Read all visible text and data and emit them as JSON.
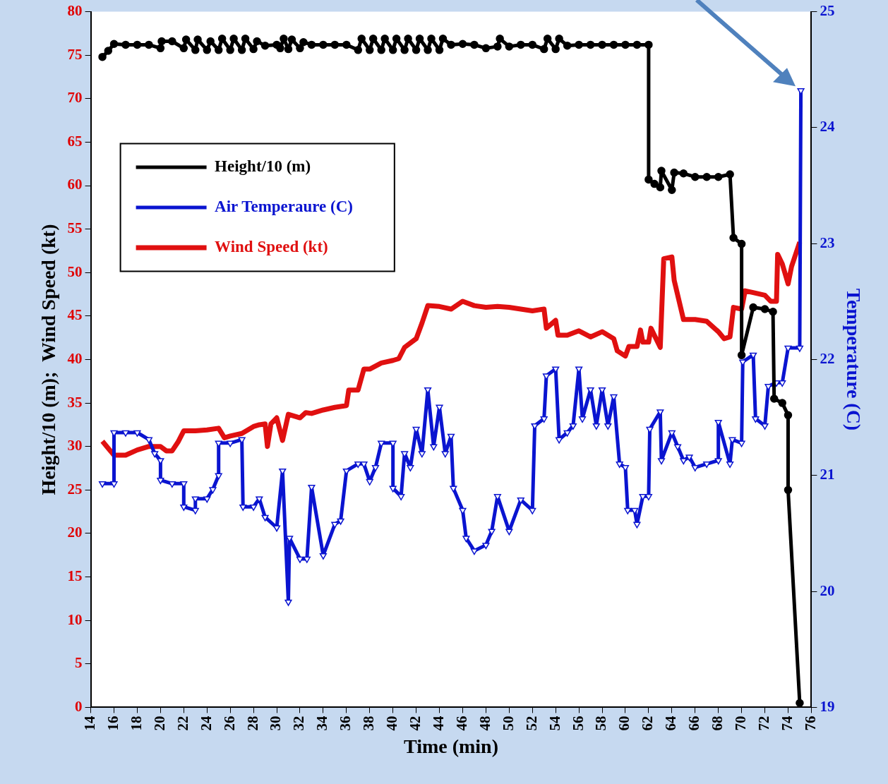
{
  "chart_data": {
    "type": "line",
    "xlabel": "Time (min)",
    "ylabel": "Height/10 (m);  Wind Speed (kt)",
    "y2label": "Temperature (C)",
    "xlim": [
      14,
      76
    ],
    "xticks": [
      14,
      16,
      18,
      20,
      22,
      24,
      26,
      28,
      30,
      32,
      34,
      36,
      38,
      40,
      42,
      44,
      46,
      48,
      50,
      52,
      54,
      56,
      58,
      60,
      62,
      64,
      66,
      68,
      70,
      72,
      74,
      76
    ],
    "ylim": [
      0,
      80
    ],
    "yticks": [
      0,
      5,
      10,
      15,
      20,
      25,
      30,
      35,
      40,
      45,
      50,
      55,
      60,
      65,
      70,
      75,
      80
    ],
    "y2lim": [
      19,
      25
    ],
    "y2ticks": [
      19,
      20,
      21,
      22,
      23,
      24,
      25
    ],
    "grid": false,
    "legend": "top left",
    "series": [
      {
        "name": "Height/10 (m)",
        "color": "#000000",
        "marker": "circle",
        "x": [
          15,
          15.5,
          16,
          17,
          18,
          19,
          20,
          20.1,
          21,
          22,
          22.2,
          23,
          23.2,
          24,
          24.3,
          25,
          25.3,
          26,
          26.3,
          27,
          27.3,
          28,
          28.3,
          29,
          30,
          30.3,
          30.6,
          31,
          31.3,
          32,
          32.3,
          33,
          34,
          35,
          36,
          37,
          37.3,
          38,
          38.3,
          39,
          39.3,
          40,
          40.3,
          41,
          41.3,
          42,
          42.3,
          43,
          43.3,
          44,
          44.3,
          45,
          46,
          47,
          48,
          49,
          49.2,
          50,
          51,
          52,
          53,
          53.3,
          54,
          54.3,
          55,
          56,
          57,
          58,
          59,
          60,
          61,
          62,
          62,
          62.5,
          63,
          63.1,
          64,
          64.2,
          65,
          66,
          67,
          68,
          69,
          69.3,
          70,
          70,
          71,
          72,
          72.7,
          72.8,
          73.5,
          74,
          74,
          75
        ],
        "values": [
          74.8,
          75.5,
          76.3,
          76.2,
          76.2,
          76.2,
          75.8,
          76.6,
          76.6,
          75.8,
          76.8,
          75.6,
          76.8,
          75.6,
          76.6,
          75.6,
          76.9,
          75.6,
          76.9,
          75.6,
          76.9,
          75.7,
          76.6,
          76.1,
          76.2,
          75.8,
          76.9,
          75.7,
          76.8,
          75.8,
          76.5,
          76.2,
          76.2,
          76.2,
          76.2,
          75.6,
          76.9,
          75.6,
          76.9,
          75.6,
          76.9,
          75.6,
          76.9,
          75.6,
          76.9,
          75.6,
          76.9,
          75.6,
          76.9,
          75.6,
          76.9,
          76.2,
          76.3,
          76.2,
          75.8,
          76,
          76.9,
          76,
          76.2,
          76.2,
          75.7,
          76.9,
          75.7,
          76.9,
          76.1,
          76.2,
          76.2,
          76.2,
          76.2,
          76.2,
          76.2,
          76.2,
          60.7,
          60.2,
          59.8,
          61.7,
          59.5,
          61.5,
          61.4,
          61,
          61,
          61,
          61.3,
          54,
          53.3,
          40.5,
          46,
          45.8,
          45.5,
          35.5,
          35,
          33.6,
          25,
          0.5
        ]
      },
      {
        "name": "Air Temperaure (C)",
        "color": "#0a14d0",
        "marker": "triangle",
        "axis": "y2",
        "x": [
          15,
          16,
          16,
          17,
          18,
          19,
          19.5,
          20,
          20,
          21,
          22,
          22,
          23,
          23,
          24,
          24.5,
          25,
          25,
          26,
          27,
          27.1,
          28,
          28.5,
          29,
          30,
          30.5,
          31,
          31.1,
          32,
          32.6,
          33,
          34,
          35,
          35.5,
          36,
          37,
          37.5,
          38,
          38.5,
          39,
          40,
          40,
          40.7,
          41,
          41.5,
          42,
          42.5,
          43,
          43.5,
          44,
          44.5,
          45,
          45.2,
          46,
          46.3,
          47,
          48,
          48.5,
          49,
          50,
          51,
          52,
          52.2,
          53,
          53.2,
          54,
          54.3,
          55,
          55.5,
          56,
          56.3,
          57,
          57.5,
          58,
          58.5,
          59,
          59.5,
          60,
          60.2,
          60.8,
          61,
          61.5,
          62,
          62.1,
          63,
          63.1,
          64,
          64.5,
          65,
          65.5,
          66,
          67,
          68,
          68,
          69,
          69.2,
          70,
          70.1,
          71,
          71.2,
          72,
          72.3,
          73,
          73.5,
          74,
          75,
          75.1
        ],
        "values": [
          20.93,
          20.93,
          21.37,
          21.37,
          21.37,
          21.31,
          21.19,
          21.13,
          20.96,
          20.93,
          20.93,
          20.73,
          20.7,
          20.8,
          20.8,
          20.88,
          21,
          21.28,
          21.28,
          21.31,
          20.73,
          20.73,
          20.8,
          20.64,
          20.55,
          21.04,
          19.91,
          20.46,
          20.28,
          20.28,
          20.9,
          20.31,
          20.58,
          20.61,
          21.04,
          21.1,
          21.1,
          20.95,
          21.07,
          21.28,
          21.28,
          20.89,
          20.82,
          21.19,
          21.07,
          21.4,
          21.19,
          21.74,
          21.25,
          21.59,
          21.19,
          21.34,
          20.89,
          20.7,
          20.46,
          20.35,
          20.4,
          20.52,
          20.82,
          20.52,
          20.79,
          20.7,
          21.43,
          21.49,
          21.86,
          21.92,
          21.31,
          21.37,
          21.43,
          21.92,
          21.49,
          21.74,
          21.43,
          21.74,
          21.43,
          21.68,
          21.1,
          21.07,
          20.7,
          20.7,
          20.58,
          20.82,
          20.82,
          21.4,
          21.55,
          21.13,
          21.37,
          21.25,
          21.13,
          21.16,
          21.07,
          21.1,
          21.13,
          21.46,
          21.1,
          21.31,
          21.28,
          21.98,
          22.04,
          21.49,
          21.43,
          21.77,
          21.8,
          21.8,
          22.1,
          22.1,
          24.32
        ]
      },
      {
        "name": "Wind Speed (kt)",
        "color": "#e01010",
        "marker": "none",
        "x": [
          15,
          15.5,
          16,
          17,
          18,
          19,
          20,
          20.5,
          21,
          21.5,
          22,
          23,
          24,
          25,
          25.5,
          26,
          27,
          28,
          28.5,
          29,
          29.2,
          29.5,
          30,
          30.5,
          31,
          32,
          32.5,
          33,
          34,
          35,
          36,
          36.2,
          37,
          37.5,
          38,
          39,
          40,
          40.5,
          41,
          42,
          42.5,
          43,
          44,
          45,
          46,
          47,
          48,
          49,
          50,
          51,
          52,
          53,
          53.2,
          54,
          54.2,
          55,
          56,
          57,
          58,
          59,
          59.3,
          60,
          60.3,
          61,
          61.3,
          61.5,
          62,
          62.2,
          63,
          63.3,
          64,
          64.2,
          65,
          66,
          67,
          68,
          68.5,
          69,
          69.3,
          70,
          70.3,
          71,
          72,
          72.5,
          73,
          73.1,
          73.5,
          74,
          74.3,
          75
        ],
        "values": [
          30.6,
          29.8,
          29,
          29,
          29.6,
          30,
          30,
          29.5,
          29.5,
          30.5,
          31.8,
          31.8,
          31.9,
          32.1,
          31,
          31.2,
          31.5,
          32.3,
          32.5,
          32.6,
          30,
          32.6,
          33.3,
          30.7,
          33.7,
          33.3,
          33.9,
          33.8,
          34.2,
          34.5,
          34.7,
          36.5,
          36.5,
          38.9,
          38.9,
          39.6,
          39.9,
          40.1,
          41.4,
          42.4,
          44.2,
          46.2,
          46.1,
          45.8,
          46.7,
          46.2,
          46,
          46.1,
          46,
          45.8,
          45.6,
          45.8,
          43.6,
          44.5,
          42.8,
          42.8,
          43.3,
          42.6,
          43.2,
          42.4,
          41,
          40.4,
          41.5,
          41.5,
          43.4,
          42,
          42,
          43.6,
          41.4,
          51.6,
          51.8,
          49.1,
          44.6,
          44.6,
          44.4,
          43.2,
          42.4,
          42.6,
          46,
          45.8,
          47.9,
          47.7,
          47.4,
          46.7,
          46.7,
          52.1,
          51,
          48.7,
          50.7,
          53.5
        ]
      }
    ]
  }
}
